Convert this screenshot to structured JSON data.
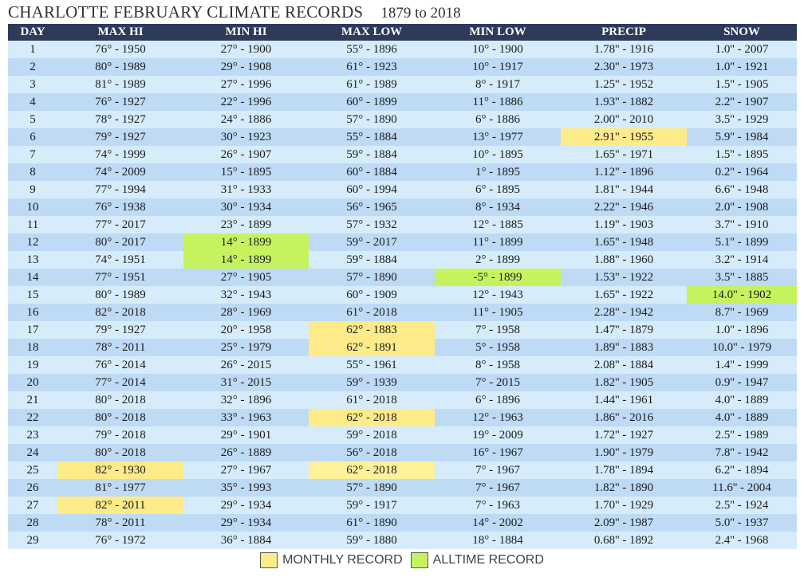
{
  "title": "CHARLOTTE FEBRUARY CLIMATE RECORDS",
  "date_range": "1879 to 2018",
  "columns": [
    "DAY",
    "MAX HI",
    "MIN HI",
    "MAX LOW",
    "MIN LOW",
    "PRECIP",
    "SNOW"
  ],
  "rows": [
    {
      "day": "1",
      "max_hi": "76° - 1950",
      "min_hi": "27° - 1900",
      "max_low": "55° - 1896",
      "min_low": "10° - 1900",
      "precip": "1.78'' - 1916",
      "snow": "1.0'' - 2007"
    },
    {
      "day": "2",
      "max_hi": "80° - 1989",
      "min_hi": "29° - 1908",
      "max_low": "61° - 1923",
      "min_low": "10° - 1917",
      "precip": "2.30'' - 1973",
      "snow": "1.0'' - 1921"
    },
    {
      "day": "3",
      "max_hi": "81° - 1989",
      "min_hi": "27° - 1996",
      "max_low": "61° - 1989",
      "min_low": "8° - 1917",
      "precip": "1.25'' - 1952",
      "snow": "1.5'' - 1905"
    },
    {
      "day": "4",
      "max_hi": "76° - 1927",
      "min_hi": "22° - 1996",
      "max_low": "60° - 1899",
      "min_low": "11° - 1886",
      "precip": "1.93'' - 1882",
      "snow": "2.2'' - 1907"
    },
    {
      "day": "5",
      "max_hi": "78° - 1927",
      "min_hi": "24° - 1886",
      "max_low": "57° - 1890",
      "min_low": "6° - 1886",
      "precip": "2.00'' - 2010",
      "snow": "3.5'' - 1929"
    },
    {
      "day": "6",
      "max_hi": "79° - 1927",
      "min_hi": "30° - 1923",
      "max_low": "55° - 1884",
      "min_low": "13° - 1977",
      "precip": "2.91'' - 1955",
      "snow": "5.9'' - 1984"
    },
    {
      "day": "7",
      "max_hi": "74° - 1999",
      "min_hi": "26° - 1907",
      "max_low": "59° - 1884",
      "min_low": "10° - 1895",
      "precip": "1.65'' - 1971",
      "snow": "1.5'' - 1895"
    },
    {
      "day": "8",
      "max_hi": "74° - 2009",
      "min_hi": "15° - 1895",
      "max_low": "60° - 1884",
      "min_low": "1° - 1895",
      "precip": "1.12'' - 1896",
      "snow": "0.2'' - 1964"
    },
    {
      "day": "9",
      "max_hi": "77° - 1994",
      "min_hi": "31° - 1933",
      "max_low": "60° - 1994",
      "min_low": "6° - 1895",
      "precip": "1.81'' - 1944",
      "snow": "6.6'' - 1948"
    },
    {
      "day": "10",
      "max_hi": "76° - 1938",
      "min_hi": "30° - 1934",
      "max_low": "56° - 1965",
      "min_low": "8° - 1934",
      "precip": "2.22'' - 1946",
      "snow": "2.0'' - 1908"
    },
    {
      "day": "11",
      "max_hi": "77° - 2017",
      "min_hi": "23° - 1899",
      "max_low": "57° - 1932",
      "min_low": "12° - 1885",
      "precip": "1.19'' - 1903",
      "snow": "3.7'' - 1910"
    },
    {
      "day": "12",
      "max_hi": "80° - 2017",
      "min_hi": "14° - 1899",
      "max_low": "59° - 2017",
      "min_low": "11° - 1899",
      "precip": "1.65'' - 1948",
      "snow": "5.1'' - 1899"
    },
    {
      "day": "13",
      "max_hi": "74° - 1951",
      "min_hi": "14° - 1899",
      "max_low": "59° - 1884",
      "min_low": "2° - 1899",
      "precip": "1.88'' - 1960",
      "snow": "3.2'' - 1914"
    },
    {
      "day": "14",
      "max_hi": "77° - 1951",
      "min_hi": "27° - 1905",
      "max_low": "57° - 1890",
      "min_low": "-5° - 1899",
      "precip": "1.53'' - 1922",
      "snow": "3.5'' - 1885"
    },
    {
      "day": "15",
      "max_hi": "80° - 1989",
      "min_hi": "32° - 1943",
      "max_low": "60° - 1909",
      "min_low": "12° - 1943",
      "precip": "1.65'' - 1922",
      "snow": "14.0'' - 1902"
    },
    {
      "day": "16",
      "max_hi": "82° - 2018",
      "min_hi": "28° - 1969",
      "max_low": "61° - 2018",
      "min_low": "11° - 1905",
      "precip": "2.28'' - 1942",
      "snow": "8.7'' - 1969"
    },
    {
      "day": "17",
      "max_hi": "79° - 1927",
      "min_hi": "20° - 1958",
      "max_low": "62° - 1883",
      "min_low": "7° - 1958",
      "precip": "1.47'' - 1879",
      "snow": "1.0'' - 1896"
    },
    {
      "day": "18",
      "max_hi": "78° - 2011",
      "min_hi": "25° - 1979",
      "max_low": "62° - 1891",
      "min_low": "5° - 1958",
      "precip": "1.89'' - 1883",
      "snow": "10.0'' - 1979"
    },
    {
      "day": "19",
      "max_hi": "76° - 2014",
      "min_hi": "26° - 2015",
      "max_low": "55° - 1961",
      "min_low": "8° - 1958",
      "precip": "2.08'' - 1884",
      "snow": "1.4'' - 1999"
    },
    {
      "day": "20",
      "max_hi": "77° - 2014",
      "min_hi": "31° - 2015",
      "max_low": "59° - 1939",
      "min_low": "7° - 2015",
      "precip": "1.82'' - 1905",
      "snow": "0.9'' - 1947"
    },
    {
      "day": "21",
      "max_hi": "80° - 2018",
      "min_hi": "32° - 1896",
      "max_low": "61° - 2018",
      "min_low": "6° - 1896",
      "precip": "1.44'' - 1961",
      "snow": "4.0'' - 1889"
    },
    {
      "day": "22",
      "max_hi": "80° - 2018",
      "min_hi": "33° - 1963",
      "max_low": "62° - 2018",
      "min_low": "12° - 1963",
      "precip": "1.86'' - 2016",
      "snow": "4.0'' - 1889"
    },
    {
      "day": "23",
      "max_hi": "79° - 2018",
      "min_hi": "29° - 1901",
      "max_low": "59° - 2018",
      "min_low": "19° - 2009",
      "precip": "1.72'' - 1927",
      "snow": "2.5'' - 1989"
    },
    {
      "day": "24",
      "max_hi": "80° - 2018",
      "min_hi": "26° - 1889",
      "max_low": "56° - 2018",
      "min_low": "16° - 1967",
      "precip": "1.90'' - 1979",
      "snow": "7.8'' - 1942"
    },
    {
      "day": "25",
      "max_hi": "82° - 1930",
      "min_hi": "27° - 1967",
      "max_low": "62° - 2018",
      "min_low": "7° - 1967",
      "precip": "1.78'' - 1894",
      "snow": "6.2'' - 1894"
    },
    {
      "day": "26",
      "max_hi": "81° - 1977",
      "min_hi": "35° - 1993",
      "max_low": "57° - 1890",
      "min_low": "7° - 1967",
      "precip": "1.82'' - 1890",
      "snow": "11.6'' - 2004"
    },
    {
      "day": "27",
      "max_hi": "82° - 2011",
      "min_hi": "29° - 1934",
      "max_low": "59° - 1917",
      "min_low": "7° - 1963",
      "precip": "1.70'' - 1929",
      "snow": "2.5'' - 1924"
    },
    {
      "day": "28",
      "max_hi": "78° - 2011",
      "min_hi": "29° - 1934",
      "max_low": "61° - 1890",
      "min_low": "14° - 2002",
      "precip": "2.09'' - 1987",
      "snow": "5.0'' - 1937"
    },
    {
      "day": "29",
      "max_hi": "76° - 1972",
      "min_hi": "36° - 1884",
      "max_low": "59° - 1880",
      "min_low": "18° - 1884",
      "precip": "0.68'' - 1892",
      "snow": "2.4'' - 1968"
    }
  ],
  "highlights": {
    "monthly": [
      {
        "row": 5,
        "col": "precip"
      },
      {
        "row": 16,
        "col": "max_low"
      },
      {
        "row": 17,
        "col": "max_low"
      },
      {
        "row": 21,
        "col": "max_low"
      },
      {
        "row": 24,
        "col": "max_hi"
      },
      {
        "row": 24,
        "col": "max_low"
      },
      {
        "row": 26,
        "col": "max_hi"
      }
    ],
    "alltime": [
      {
        "row": 11,
        "col": "min_hi"
      },
      {
        "row": 12,
        "col": "min_hi"
      },
      {
        "row": 13,
        "col": "min_low"
      },
      {
        "row": 14,
        "col": "snow"
      }
    ]
  },
  "legend": {
    "monthly_label": "MONTHLY RECORD",
    "alltime_label": "ALLTIME RECORD",
    "monthly_color": "#fdeb8a",
    "alltime_color": "#c7f260"
  },
  "colors": {
    "header_bg": "#2d3a5a",
    "row_odd": "#d6ecfb",
    "row_even": "#bedaf5"
  }
}
